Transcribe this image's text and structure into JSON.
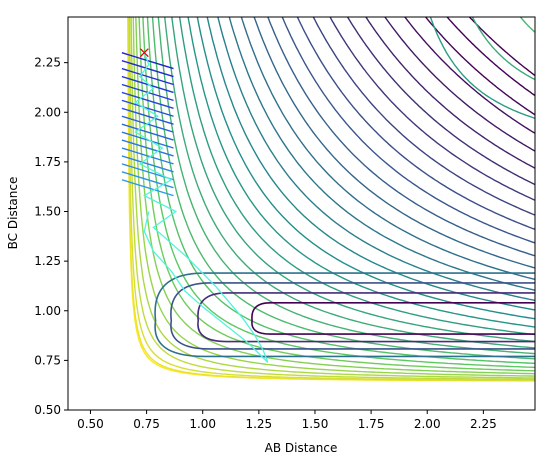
{
  "chart_data": {
    "type": "contour",
    "title": "",
    "xlabel": "AB Distance",
    "ylabel": "BC Distance",
    "xlim": [
      0.4,
      2.48
    ],
    "ylim": [
      0.5,
      2.48
    ],
    "x_ticks": [
      "0.50",
      "0.75",
      "1.00",
      "1.25",
      "1.50",
      "1.75",
      "2.00",
      "2.25"
    ],
    "y_ticks": [
      "0.50",
      "0.75",
      "1.00",
      "1.25",
      "1.50",
      "1.75",
      "2.00",
      "2.25"
    ],
    "grid": false,
    "legend": "none",
    "colormap": [
      "#440154",
      "#3b528b",
      "#21918c",
      "#5ec962",
      "#fde725"
    ],
    "contour_levels": 34,
    "surface": {
      "asymptote_x": 0.66,
      "asymptote_y": 0.64,
      "valley_center_y": 0.95,
      "repulsive_corner": [
        0.5,
        0.5
      ]
    },
    "trajectory": {
      "color": "#4ff5dc",
      "start": [
        0.74,
        2.3
      ],
      "points": [
        [
          0.74,
          2.3
        ],
        [
          0.76,
          2.24
        ],
        [
          0.72,
          2.18
        ],
        [
          0.78,
          2.12
        ],
        [
          0.7,
          2.05
        ],
        [
          0.8,
          1.98
        ],
        [
          0.7,
          1.9
        ],
        [
          0.82,
          1.82
        ],
        [
          0.72,
          1.74
        ],
        [
          0.86,
          1.66
        ],
        [
          0.74,
          1.58
        ],
        [
          0.88,
          1.5
        ],
        [
          0.78,
          1.42
        ],
        [
          0.85,
          1.35
        ],
        [
          0.93,
          1.27
        ],
        [
          0.99,
          1.2
        ],
        [
          1.06,
          1.12
        ],
        [
          1.12,
          1.04
        ],
        [
          1.18,
          0.96
        ],
        [
          1.23,
          0.88
        ],
        [
          1.27,
          0.8
        ],
        [
          1.29,
          0.74
        ]
      ],
      "return_points": [
        [
          1.29,
          0.74
        ],
        [
          1.2,
          0.84
        ],
        [
          1.1,
          0.93
        ],
        [
          1.0,
          1.02
        ],
        [
          0.92,
          1.1
        ],
        [
          0.86,
          1.2
        ],
        [
          0.78,
          1.3
        ],
        [
          0.74,
          1.4
        ],
        [
          0.76,
          1.5
        ]
      ]
    },
    "marker": {
      "label": "x",
      "color": "#e8000b",
      "x": 0.74,
      "y": 2.3
    },
    "zigzag_lines": {
      "x_range": [
        0.64,
        0.87
      ],
      "y_values": [
        2.3,
        2.26,
        2.22,
        2.18,
        2.14,
        2.1,
        2.06,
        2.02,
        1.98,
        1.94,
        1.9,
        1.86,
        1.82,
        1.78,
        1.74,
        1.7,
        1.66
      ]
    }
  }
}
